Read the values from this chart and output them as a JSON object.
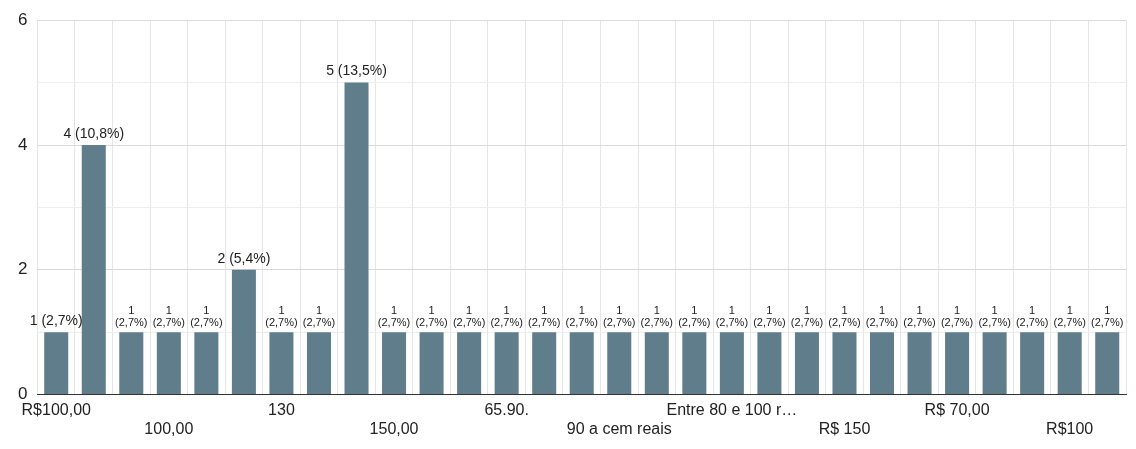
{
  "chart_data": {
    "type": "bar",
    "categories": [
      "R$100,00",
      null,
      null,
      "100,00",
      null,
      null,
      "130",
      null,
      null,
      "150,00",
      null,
      null,
      "65.90.",
      null,
      null,
      "90 a cem reais",
      null,
      null,
      "Entre 80 e 100 r…",
      null,
      null,
      "R$ 150",
      null,
      null,
      "R$ 70,00",
      null,
      null,
      "R$100",
      null
    ],
    "values": [
      1,
      4,
      1,
      1,
      1,
      2,
      1,
      1,
      5,
      1,
      1,
      1,
      1,
      1,
      1,
      1,
      1,
      1,
      1,
      1,
      1,
      1,
      1,
      1,
      1,
      1,
      1,
      1,
      1
    ],
    "value_labels": [
      "1 (2,7%)",
      "4 (10,8%)",
      "1 (2,7%)",
      "1 (2,7%)",
      "1 (2,7%)",
      "2 (5,4%)",
      "1 (2,7%)",
      "1 (2,7%)",
      "5 (13,5%)",
      "1 (2,7%)",
      "1 (2,7%)",
      "1 (2,7%)",
      "1 (2,7%)",
      "1 (2,7%)",
      "1 (2,7%)",
      "1 (2,7%)",
      "1 (2,7%)",
      "1 (2,7%)",
      "1 (2,7%)",
      "1 (2,7%)",
      "1 (2,7%)",
      "1 (2,7%)",
      "1 (2,7%)",
      "1 (2,7%)",
      "1 (2,7%)",
      "1 (2,7%)",
      "1 (2,7%)",
      "1 (2,7%)",
      "1 (2,7%)"
    ],
    "color": "#607d8b",
    "ylim": [
      0,
      6
    ],
    "yticks": [
      0,
      {
        "value": 1,
        "label": null
      },
      2,
      {
        "value": 3,
        "label": null
      },
      4,
      {
        "value": 5,
        "label": null
      },
      6
    ],
    "grid": true
  }
}
